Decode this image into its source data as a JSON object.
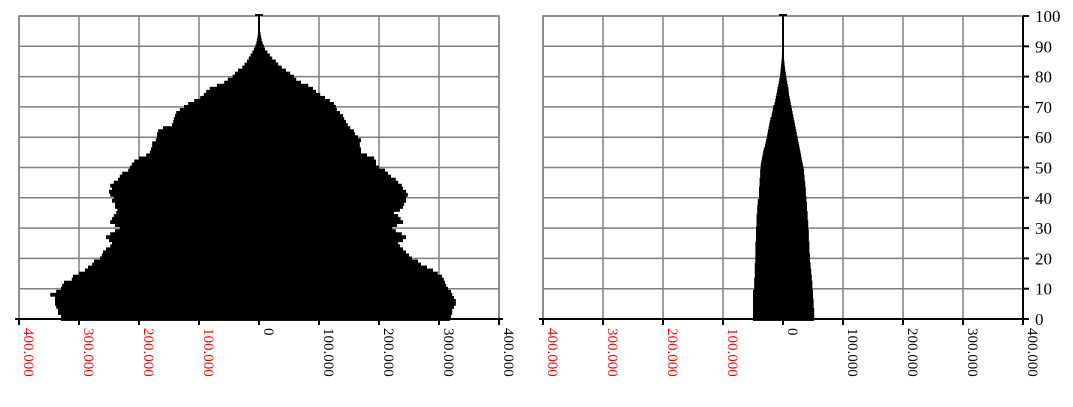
{
  "chart_data": [
    {
      "type": "bar",
      "orientation": "horizontal",
      "layout": "population-pyramid",
      "y": [
        0,
        1,
        2,
        3,
        4,
        5,
        6,
        7,
        8,
        9,
        10,
        11,
        12,
        13,
        14,
        15,
        16,
        17,
        18,
        19,
        20,
        21,
        22,
        23,
        24,
        25,
        26,
        27,
        28,
        29,
        30,
        31,
        32,
        33,
        34,
        35,
        36,
        37,
        38,
        39,
        40,
        41,
        42,
        43,
        44,
        45,
        46,
        47,
        48,
        49,
        50,
        51,
        52,
        53,
        54,
        55,
        56,
        57,
        58,
        59,
        60,
        61,
        62,
        63,
        64,
        65,
        66,
        67,
        68,
        69,
        70,
        71,
        72,
        73,
        74,
        75,
        76,
        77,
        78,
        79,
        80,
        81,
        82,
        83,
        84,
        85,
        86,
        87,
        88,
        89,
        90,
        91,
        92,
        93,
        94,
        95,
        96,
        97,
        98,
        99,
        100
      ],
      "series": [
        {
          "side": "left",
          "values": [
            330000,
            330000,
            335000,
            335000,
            338000,
            340000,
            340000,
            340000,
            348000,
            338000,
            330000,
            328000,
            325000,
            312000,
            310000,
            300000,
            290000,
            285000,
            278000,
            275000,
            265000,
            262000,
            260000,
            255000,
            248000,
            245000,
            250000,
            255000,
            248000,
            240000,
            232000,
            240000,
            248000,
            245000,
            242000,
            238000,
            236000,
            240000,
            240000,
            245000,
            242000,
            248000,
            250000,
            245000,
            248000,
            242000,
            235000,
            232000,
            228000,
            218000,
            215000,
            212000,
            208000,
            200000,
            188000,
            182000,
            180000,
            178000,
            178000,
            172000,
            170000,
            170000,
            168000,
            160000,
            145000,
            143000,
            142000,
            140000,
            138000,
            132000,
            125000,
            118000,
            108000,
            98000,
            92000,
            88000,
            82000,
            70000,
            58000,
            52000,
            44000,
            40000,
            35000,
            28000,
            24000,
            20000,
            17000,
            14000,
            11000,
            8500,
            6000,
            4500,
            3500,
            2500,
            1800,
            1200,
            800,
            500,
            300,
            200,
            100
          ]
        },
        {
          "side": "right",
          "values": [
            318000,
            320000,
            322000,
            322000,
            325000,
            328000,
            328000,
            325000,
            322000,
            320000,
            315000,
            312000,
            310000,
            308000,
            305000,
            298000,
            290000,
            280000,
            270000,
            265000,
            255000,
            250000,
            245000,
            240000,
            235000,
            232000,
            240000,
            245000,
            238000,
            228000,
            222000,
            230000,
            240000,
            236000,
            232000,
            225000,
            235000,
            240000,
            242000,
            245000,
            245000,
            248000,
            245000,
            240000,
            238000,
            232000,
            228000,
            220000,
            215000,
            210000,
            200000,
            195000,
            195000,
            192000,
            180000,
            170000,
            170000,
            168000,
            168000,
            170000,
            165000,
            160000,
            158000,
            152000,
            148000,
            145000,
            142000,
            140000,
            135000,
            130000,
            128000,
            125000,
            118000,
            110000,
            102000,
            95000,
            90000,
            82000,
            70000,
            62000,
            58000,
            52000,
            45000,
            38000,
            32000,
            28000,
            22000,
            18000,
            14000,
            10000,
            8000,
            6000,
            4500,
            3500,
            2500,
            1800,
            1200,
            800,
            500,
            300,
            200
          ]
        }
      ],
      "xlim": [
        -400000,
        400000
      ],
      "ylim": [
        0,
        100
      ],
      "xticks": [
        -400000,
        -300000,
        -200000,
        -100000,
        0,
        100000,
        200000,
        300000,
        400000
      ],
      "xtick_labels": [
        "400.000",
        "300.000",
        "200.000",
        "100.000",
        "0",
        "100.000",
        "200.000",
        "300.000",
        "400.000"
      ],
      "grid": true
    },
    {
      "type": "bar",
      "orientation": "horizontal",
      "layout": "population-pyramid",
      "y": [
        0,
        1,
        2,
        3,
        4,
        5,
        6,
        7,
        8,
        9,
        10,
        11,
        12,
        13,
        14,
        15,
        16,
        17,
        18,
        19,
        20,
        21,
        22,
        23,
        24,
        25,
        26,
        27,
        28,
        29,
        30,
        31,
        32,
        33,
        34,
        35,
        36,
        37,
        38,
        39,
        40,
        41,
        42,
        43,
        44,
        45,
        46,
        47,
        48,
        49,
        50,
        51,
        52,
        53,
        54,
        55,
        56,
        57,
        58,
        59,
        60,
        61,
        62,
        63,
        64,
        65,
        66,
        67,
        68,
        69,
        70,
        71,
        72,
        73,
        74,
        75,
        76,
        77,
        78,
        79,
        80,
        81,
        82,
        83,
        84,
        85,
        86,
        87,
        88,
        89,
        90,
        91,
        92,
        93,
        94,
        95,
        96,
        97,
        98,
        99,
        100
      ],
      "series": [
        {
          "side": "left",
          "values": [
            50000,
            50000,
            50000,
            50000,
            50000,
            50000,
            50000,
            50000,
            50000,
            50000,
            48000,
            48000,
            48000,
            48000,
            47000,
            47000,
            47000,
            47000,
            47000,
            46000,
            46000,
            46000,
            46000,
            46000,
            46000,
            46000,
            45000,
            45000,
            45000,
            45000,
            45000,
            44000,
            44000,
            44000,
            44000,
            43000,
            43000,
            43000,
            42000,
            42000,
            40000,
            40000,
            40000,
            40000,
            39000,
            39000,
            39000,
            38000,
            38000,
            38000,
            37000,
            37000,
            36000,
            35000,
            34000,
            33000,
            32000,
            30000,
            29000,
            28000,
            27000,
            26000,
            25000,
            24000,
            23000,
            22000,
            21000,
            19000,
            18000,
            17000,
            16000,
            14000,
            13000,
            12000,
            11000,
            10000,
            9000,
            8000,
            7000,
            6000,
            5000,
            4500,
            4000,
            3500,
            3000,
            2500,
            2000,
            1800,
            1500,
            1200,
            1000,
            800,
            600,
            500,
            400,
            300,
            200,
            150,
            100,
            60,
            30
          ]
        },
        {
          "side": "right",
          "values": [
            52000,
            52000,
            52000,
            52000,
            51000,
            51000,
            51000,
            50000,
            50000,
            50000,
            49000,
            49000,
            49000,
            48000,
            48000,
            47000,
            47000,
            46000,
            46000,
            45000,
            45000,
            45000,
            44000,
            44000,
            44000,
            44000,
            43000,
            43000,
            43000,
            43000,
            42000,
            42000,
            42000,
            41000,
            41000,
            41000,
            40000,
            40000,
            40000,
            39000,
            39000,
            38000,
            38000,
            38000,
            37000,
            37000,
            36000,
            36000,
            35000,
            35000,
            34000,
            33000,
            32000,
            31000,
            30000,
            29000,
            28000,
            27000,
            26000,
            25000,
            24000,
            23000,
            22000,
            21000,
            20000,
            19000,
            18000,
            17000,
            16000,
            15000,
            14000,
            13000,
            12000,
            11000,
            10000,
            9500,
            9000,
            8000,
            7000,
            6000,
            5200,
            4500,
            3800,
            3200,
            2600,
            2100,
            1700,
            1400,
            1100,
            900,
            700,
            550,
            420,
            320,
            240,
            180,
            130,
            90,
            60,
            40,
            20
          ]
        }
      ],
      "xlim": [
        -400000,
        400000
      ],
      "ylim": [
        0,
        100
      ],
      "xticks": [
        -400000,
        -300000,
        -200000,
        -100000,
        0,
        100000,
        200000,
        300000,
        400000
      ],
      "xtick_labels": [
        "400.000",
        "300.000",
        "200.000",
        "100.000",
        "0",
        "100.000",
        "200.000",
        "300.000",
        "400.000"
      ],
      "ytick_labels": [
        "0",
        "10",
        "20",
        "30",
        "40",
        "50",
        "60",
        "70",
        "80",
        "90",
        "100"
      ],
      "grid": true
    }
  ],
  "colors": {
    "bars": "#000000",
    "grid": "#808080",
    "negative_tick_labels": "#ff0000",
    "positive_tick_labels": "#000000"
  }
}
